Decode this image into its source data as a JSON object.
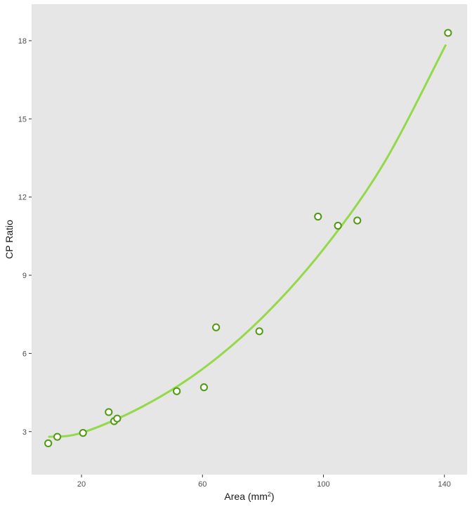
{
  "chart_data": {
    "type": "scatter",
    "xlabel": "Area (mm",
    "xlabel_sup": "2",
    "xlabel_suffix": ")",
    "ylabel": "CP Ratio",
    "xlim": [
      3.5,
      147.5
    ],
    "ylim": [
      1.35,
      19.4
    ],
    "x_ticks": [
      20,
      60,
      100,
      140
    ],
    "y_ticks": [
      3,
      6,
      9,
      12,
      15,
      18
    ],
    "grid": false,
    "points": [
      {
        "x": 9,
        "y": 2.55
      },
      {
        "x": 12,
        "y": 2.8
      },
      {
        "x": 20.5,
        "y": 2.95
      },
      {
        "x": 29,
        "y": 3.75
      },
      {
        "x": 30.8,
        "y": 3.4
      },
      {
        "x": 31.8,
        "y": 3.5
      },
      {
        "x": 51.5,
        "y": 4.55
      },
      {
        "x": 60.5,
        "y": 4.7
      },
      {
        "x": 64.5,
        "y": 7.0
      },
      {
        "x": 78.8,
        "y": 6.85
      },
      {
        "x": 98.2,
        "y": 11.25
      },
      {
        "x": 104.8,
        "y": 10.9
      },
      {
        "x": 111.2,
        "y": 11.1
      },
      {
        "x": 141.2,
        "y": 18.3
      }
    ],
    "fit": {
      "type": "quadratic",
      "x": [
        9,
        20,
        40,
        60,
        80,
        100,
        120,
        140.5
      ],
      "y": [
        2.8,
        2.95,
        3.95,
        5.4,
        7.4,
        10.0,
        13.3,
        17.85
      ]
    },
    "colors": {
      "panel": "#e6e6e6",
      "point_stroke": "#4f9a10",
      "fit_line": "#93d94a",
      "tick": "#333333"
    }
  }
}
